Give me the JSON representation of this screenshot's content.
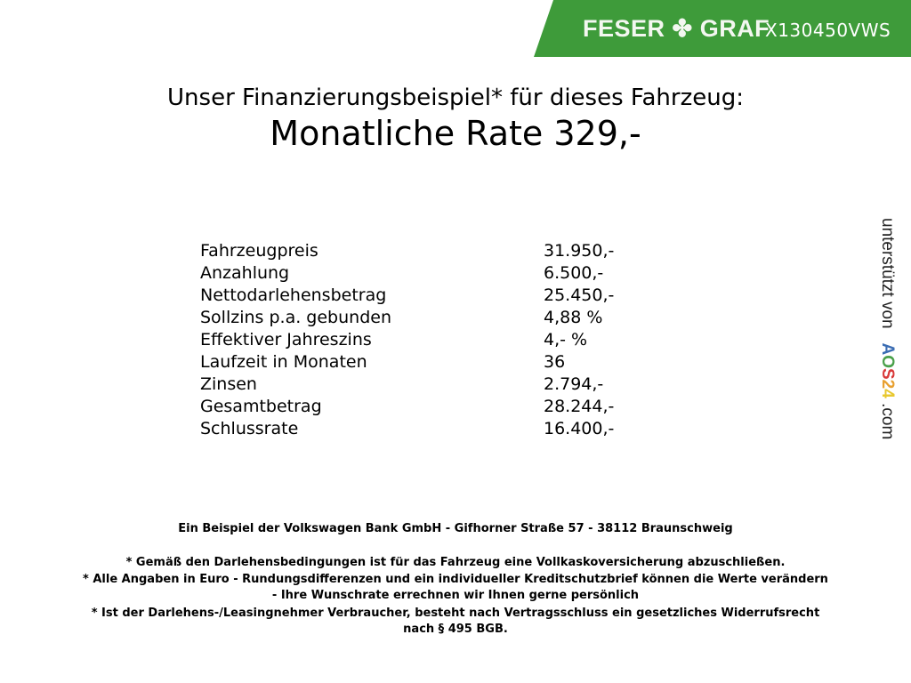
{
  "header": {
    "brand": "FESER",
    "brand2": "GRAF",
    "brand_icon": "clover-icon",
    "vehicle_code": "X130450VWS",
    "color": "#3e9b3a"
  },
  "title": {
    "line1": "Unser Finanzierungsbeispiel* für dieses Fahrzeug:",
    "line2": "Monatliche Rate 329,-"
  },
  "rows": [
    {
      "label": "Fahrzeugpreis",
      "value": "31.950,-"
    },
    {
      "label": "Anzahlung",
      "value": "6.500,-"
    },
    {
      "label": "Nettodarlehensbetrag",
      "value": "25.450,-"
    },
    {
      "label": "Sollzins p.a. gebunden",
      "value": "4,88 %"
    },
    {
      "label": "Effektiver Jahreszins",
      "value": "4,- %"
    },
    {
      "label": "Laufzeit in Monaten",
      "value": "36"
    },
    {
      "label": "Zinsen",
      "value": "2.794,-"
    },
    {
      "label": "Gesamtbetrag",
      "value": "28.244,-"
    },
    {
      "label": "Schlussrate",
      "value": "16.400,-"
    }
  ],
  "footer": {
    "bank": "Ein Beispiel der Volkswagen Bank GmbH - Gifhorner Straße 57 - 38112 Braunschweig",
    "note1": "* Gemäß den Darlehensbedingungen ist für das Fahrzeug eine Vollkaskoversicherung abzuschließen.",
    "note2a": "* Alle Angaben in Euro - Rundungsdifferenzen und ein individueller Kreditschutzbrief können die Werte verändern",
    "note2b": "- Ihre Wunschrate errechnen wir Ihnen gerne persönlich",
    "note3a": "* Ist der Darlehens-/Leasingnehmer Verbraucher, besteht nach Vertragsschluss ein gesetzliches Widerrufsrecht",
    "note3b": "nach § 495 BGB."
  },
  "side": {
    "prefix": "unterstützt von",
    "logo": [
      "A",
      "O",
      "S",
      "2",
      "4"
    ],
    "logo_colors": [
      "#3b6db3",
      "#4aa04a",
      "#d93a3a",
      "#e8a030",
      "#e8c830"
    ],
    "suffix": ".com"
  }
}
